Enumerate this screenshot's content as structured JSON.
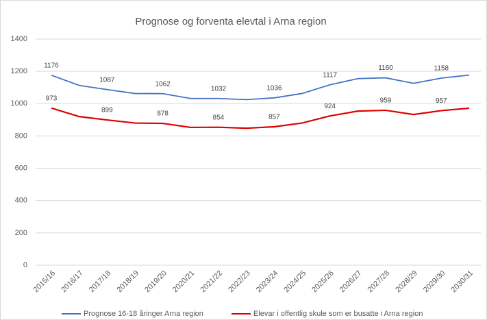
{
  "chart_data": {
    "type": "line",
    "title": "Prognose og forventa elevtal i Arna region",
    "categories": [
      "2015/16",
      "2016/17",
      "2017/18",
      "2018/19",
      "2019/20",
      "2020/21",
      "2021/22",
      "2022/23",
      "2023/24",
      "2024/25",
      "2025/26",
      "2026/27",
      "2027/28",
      "2028/29",
      "2029/30",
      "2030/31"
    ],
    "series": [
      {
        "name": "Prognose 16-18 åringer Arna region",
        "color": "#4472c4",
        "values": [
          1176,
          1113,
          1087,
          1063,
          1062,
          1032,
          1032,
          1025,
          1036,
          1063,
          1117,
          1155,
          1160,
          1126,
          1158,
          1177
        ],
        "value_labels": [
          1176,
          null,
          1087,
          null,
          1062,
          null,
          1032,
          null,
          1036,
          null,
          1117,
          null,
          1160,
          null,
          1158,
          null
        ]
      },
      {
        "name": "Elevar i offentlig skule som er busatte i Arna region",
        "color": "#e00000",
        "values": [
          973,
          920,
          899,
          880,
          878,
          853,
          854,
          848,
          857,
          880,
          924,
          954,
          959,
          933,
          957,
          972
        ],
        "value_labels": [
          973,
          null,
          899,
          null,
          878,
          null,
          854,
          null,
          857,
          null,
          924,
          null,
          959,
          null,
          957,
          null
        ]
      }
    ],
    "ylim": [
      0,
      1400
    ],
    "yticks": [
      0,
      200,
      400,
      600,
      800,
      1000,
      1200,
      1400
    ],
    "grid": true
  }
}
